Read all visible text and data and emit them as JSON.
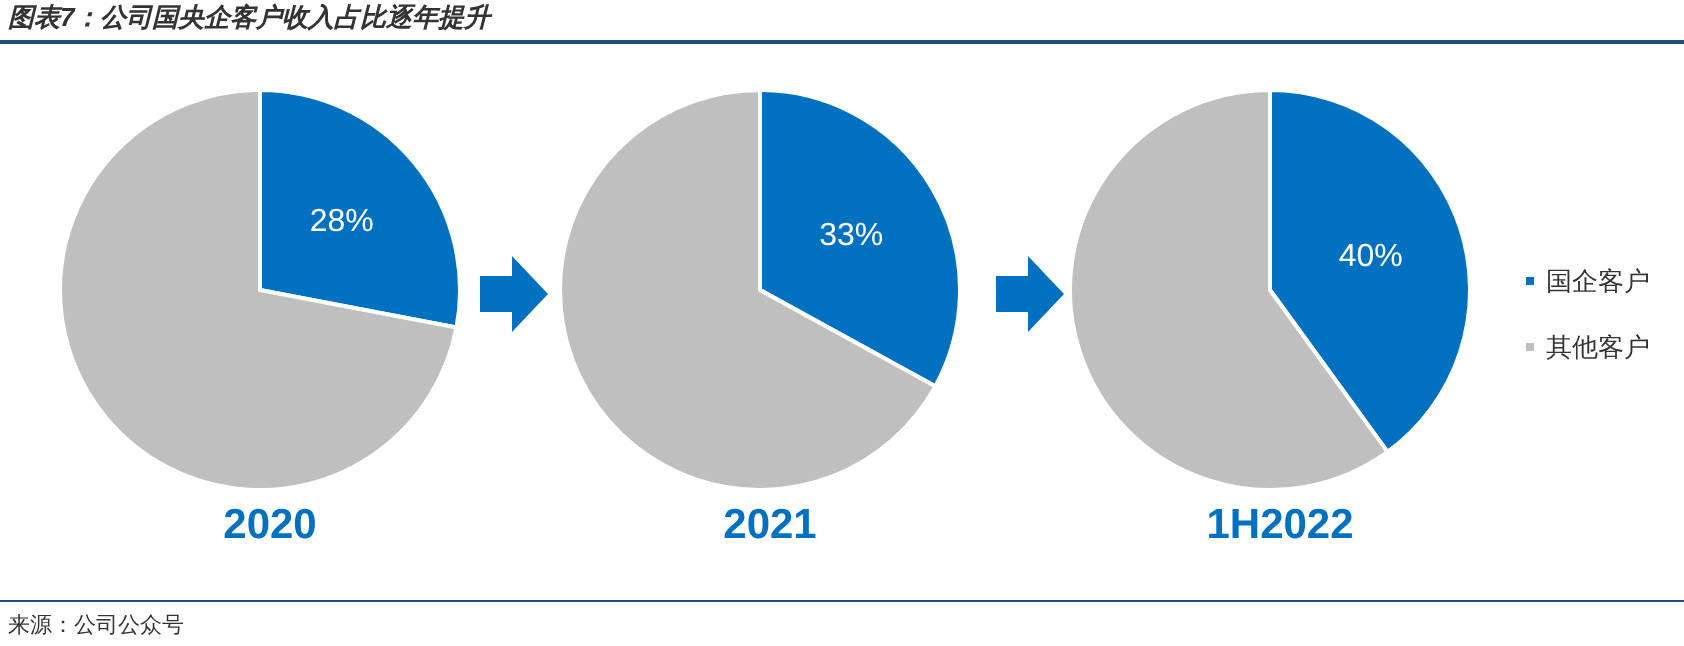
{
  "chart_data": [
    {
      "type": "pie",
      "title": "图表7：公司国央企客户收入占比逐年提升",
      "xlabel": "2020",
      "categories": [
        null,
        null
      ],
      "values": [
        28,
        72
      ],
      "colors": [
        "#0070c0",
        "#bfbfbf"
      ],
      "value_labels": [
        "28%",
        null
      ],
      "legend": false,
      "annotations": [
        "来源：公司公众号"
      ]
    },
    {
      "type": "pie",
      "xlabel": "2021",
      "categories": [
        null,
        null
      ],
      "values": [
        33,
        67
      ],
      "colors": [
        "#0070c0",
        "#bfbfbf"
      ],
      "value_labels": [
        "33%",
        null
      ],
      "legend": false
    },
    {
      "type": "pie",
      "xlabel": "1H2022",
      "categories": [
        "国企客户",
        "其他客户"
      ],
      "values": [
        40,
        60
      ],
      "colors": [
        "#0070c0",
        "#bfbfbf"
      ],
      "value_labels": [
        "40%",
        null
      ],
      "legend": "right"
    }
  ]
}
